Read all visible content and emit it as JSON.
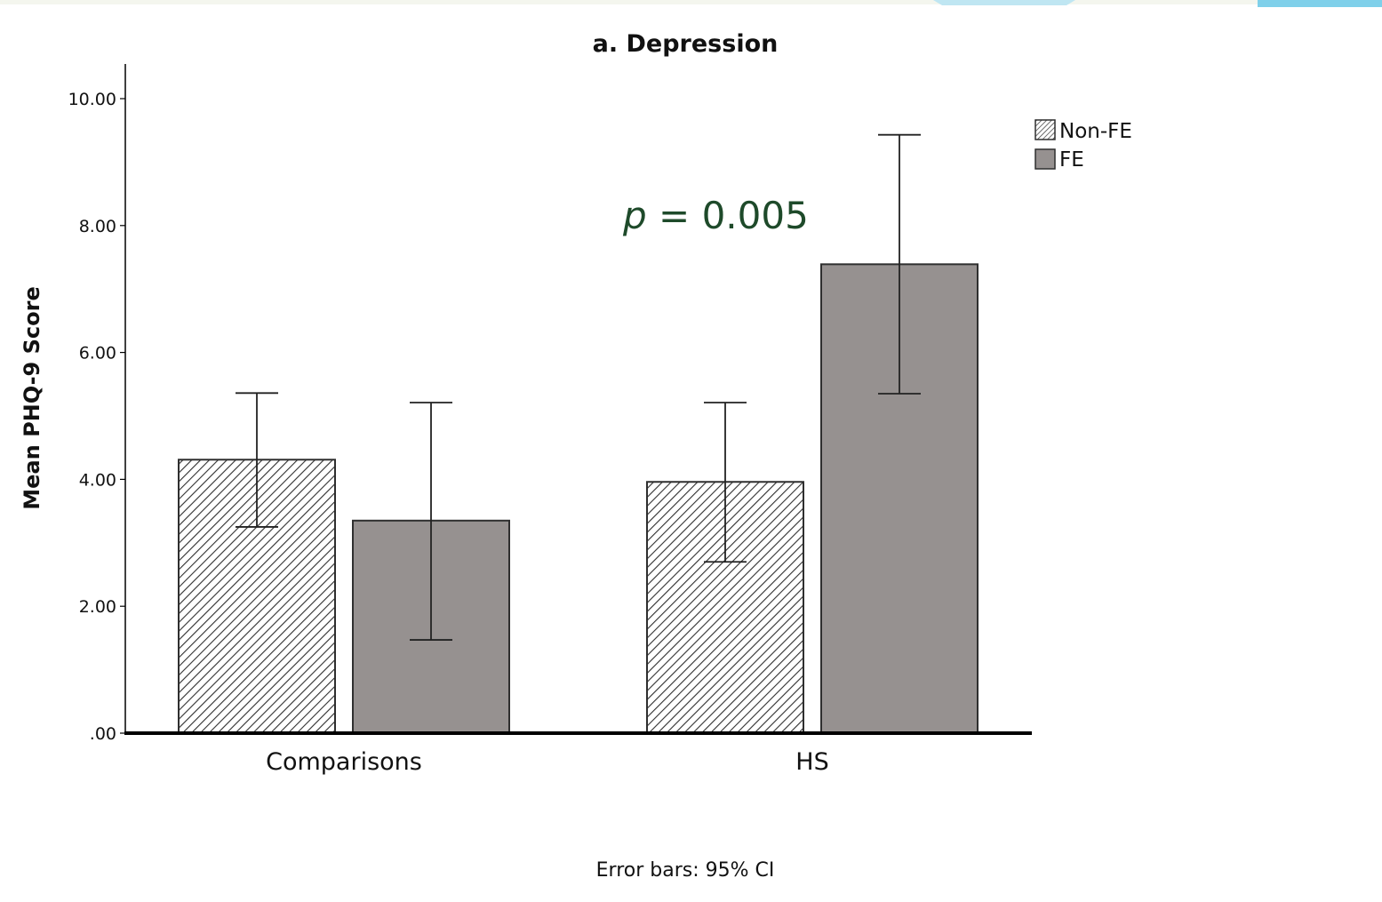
{
  "chart_data": {
    "type": "bar",
    "title": "a. Depression",
    "ylabel": "Mean PHQ-9 Score",
    "xlabel": "",
    "ylim": [
      0,
      10
    ],
    "yticks": [
      {
        "value": 0,
        "label": ".00"
      },
      {
        "value": 2,
        "label": "2.00"
      },
      {
        "value": 4,
        "label": "4.00"
      },
      {
        "value": 6,
        "label": "6.00"
      },
      {
        "value": 8,
        "label": "8.00"
      },
      {
        "value": 10,
        "label": "10.00"
      }
    ],
    "categories": [
      "Comparisons",
      "HS"
    ],
    "series": [
      {
        "name": "Non-FE",
        "fill": "hatched",
        "values": [
          4.31,
          3.96
        ],
        "ci_low": [
          3.25,
          2.7
        ],
        "ci_high": [
          5.36,
          5.21
        ]
      },
      {
        "name": "FE",
        "fill": "#969190",
        "values": [
          3.35,
          7.39
        ],
        "ci_low": [
          1.47,
          5.35
        ],
        "ci_high": [
          5.21,
          9.43
        ]
      }
    ],
    "legend_position": "top-right",
    "grid": false,
    "annotation": {
      "italic": "p",
      "text": " = 0.005",
      "color": "#1e4a2a"
    },
    "footnote": "Error bars: 95% CI"
  },
  "colors": {
    "fe_fill": "#969190",
    "bar_stroke": "#2f2f2f",
    "axis": "#000000",
    "annotation": "#1e4a2a"
  }
}
